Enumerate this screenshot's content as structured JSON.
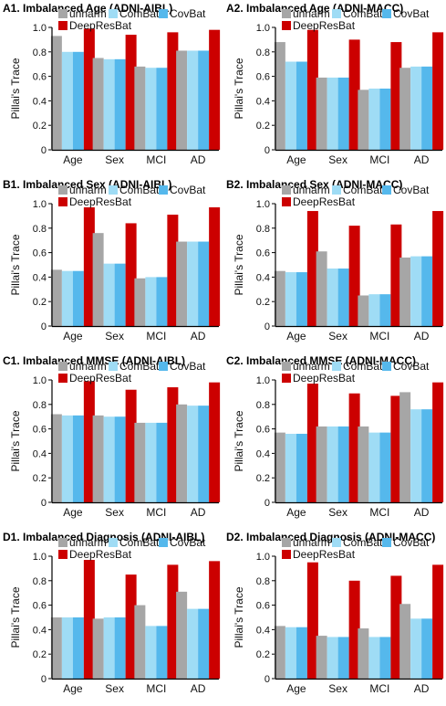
{
  "chart_data": [
    {
      "type": "bar",
      "title": "A1. Imbalanced Age (ADNI-AIBL)",
      "ylabel": "Pillai's Trace",
      "ylim": [
        0,
        1.0
      ],
      "yticks": [
        "0",
        "0.2",
        "0.4",
        "0.6",
        "0.8",
        "1.0"
      ],
      "categories": [
        "Age",
        "Sex",
        "MCI",
        "AD"
      ],
      "series": [
        {
          "name": "unharm",
          "color": "#a6a6a6",
          "values": [
            0.93,
            0.75,
            0.68,
            0.81
          ]
        },
        {
          "name": "ComBat",
          "color": "#9fdcf5",
          "values": [
            0.8,
            0.74,
            0.67,
            0.81
          ]
        },
        {
          "name": "CovBat",
          "color": "#55b8ec",
          "values": [
            0.8,
            0.74,
            0.67,
            0.81
          ]
        },
        {
          "name": "DeepResBat",
          "color": "#cc0000",
          "values": [
            0.99,
            0.94,
            0.96,
            0.98
          ]
        }
      ]
    },
    {
      "type": "bar",
      "title": "A2. Imbalanced Age (ADNI-MACC)",
      "ylabel": "Pillai's Trace",
      "ylim": [
        0,
        1.0
      ],
      "yticks": [
        "0",
        "0.2",
        "0.4",
        "0.6",
        "0.8",
        "1.0"
      ],
      "categories": [
        "Age",
        "Sex",
        "MCI",
        "AD"
      ],
      "series": [
        {
          "name": "unharm",
          "color": "#a6a6a6",
          "values": [
            0.88,
            0.59,
            0.49,
            0.67
          ]
        },
        {
          "name": "ComBat",
          "color": "#9fdcf5",
          "values": [
            0.72,
            0.59,
            0.5,
            0.68
          ]
        },
        {
          "name": "CovBat",
          "color": "#55b8ec",
          "values": [
            0.72,
            0.59,
            0.5,
            0.68
          ]
        },
        {
          "name": "DeepResBat",
          "color": "#cc0000",
          "values": [
            0.98,
            0.9,
            0.88,
            0.96
          ]
        }
      ]
    },
    {
      "type": "bar",
      "title": "B1. Imbalanced Sex (ADNI-AIBL)",
      "ylabel": "Pillai's Trace",
      "ylim": [
        0,
        1.0
      ],
      "yticks": [
        "0",
        "0.2",
        "0.4",
        "0.6",
        "0.8",
        "1.0"
      ],
      "categories": [
        "Age",
        "Sex",
        "MCI",
        "AD"
      ],
      "series": [
        {
          "name": "unharm",
          "color": "#a6a6a6",
          "values": [
            0.46,
            0.76,
            0.39,
            0.69
          ]
        },
        {
          "name": "ComBat",
          "color": "#9fdcf5",
          "values": [
            0.45,
            0.51,
            0.4,
            0.69
          ]
        },
        {
          "name": "CovBat",
          "color": "#55b8ec",
          "values": [
            0.45,
            0.51,
            0.4,
            0.69
          ]
        },
        {
          "name": "DeepResBat",
          "color": "#cc0000",
          "values": [
            0.97,
            0.84,
            0.91,
            0.97
          ]
        }
      ]
    },
    {
      "type": "bar",
      "title": "B2. Imbalanced Sex (ADNI-MACC)",
      "ylabel": "Pillai's Trace",
      "ylim": [
        0,
        1.0
      ],
      "yticks": [
        "0",
        "0.2",
        "0.4",
        "0.6",
        "0.8",
        "1.0"
      ],
      "categories": [
        "Age",
        "Sex",
        "MCI",
        "AD"
      ],
      "series": [
        {
          "name": "unharm",
          "color": "#a6a6a6",
          "values": [
            0.45,
            0.61,
            0.25,
            0.56
          ]
        },
        {
          "name": "ComBat",
          "color": "#9fdcf5",
          "values": [
            0.44,
            0.47,
            0.26,
            0.57
          ]
        },
        {
          "name": "CovBat",
          "color": "#55b8ec",
          "values": [
            0.44,
            0.47,
            0.26,
            0.57
          ]
        },
        {
          "name": "DeepResBat",
          "color": "#cc0000",
          "values": [
            0.94,
            0.82,
            0.83,
            0.94
          ]
        }
      ]
    },
    {
      "type": "bar",
      "title": "C1. Imbalanced MMSE (ADNI-AIBL)",
      "ylabel": "Pillai's Trace",
      "ylim": [
        0,
        1.0
      ],
      "yticks": [
        "0",
        "0.2",
        "0.4",
        "0.6",
        "0.8",
        "1.0"
      ],
      "categories": [
        "Age",
        "Sex",
        "MCI",
        "AD"
      ],
      "series": [
        {
          "name": "unharm",
          "color": "#a6a6a6",
          "values": [
            0.72,
            0.71,
            0.65,
            0.8
          ]
        },
        {
          "name": "ComBat",
          "color": "#9fdcf5",
          "values": [
            0.71,
            0.7,
            0.65,
            0.79
          ]
        },
        {
          "name": "CovBat",
          "color": "#55b8ec",
          "values": [
            0.71,
            0.7,
            0.65,
            0.79
          ]
        },
        {
          "name": "DeepResBat",
          "color": "#cc0000",
          "values": [
            0.99,
            0.92,
            0.94,
            0.98
          ]
        }
      ]
    },
    {
      "type": "bar",
      "title": "C2. Imbalanced MMSE (ADNI-MACC)",
      "ylabel": "Pillai's Trace",
      "ylim": [
        0,
        1.0
      ],
      "yticks": [
        "0",
        "0.2",
        "0.4",
        "0.6",
        "0.8",
        "1.0"
      ],
      "categories": [
        "Age",
        "Sex",
        "MCI",
        "AD"
      ],
      "series": [
        {
          "name": "unharm",
          "color": "#a6a6a6",
          "values": [
            0.57,
            0.62,
            0.62,
            0.9
          ]
        },
        {
          "name": "ComBat",
          "color": "#9fdcf5",
          "values": [
            0.56,
            0.62,
            0.57,
            0.76
          ]
        },
        {
          "name": "CovBat",
          "color": "#55b8ec",
          "values": [
            0.56,
            0.62,
            0.57,
            0.76
          ]
        },
        {
          "name": "DeepResBat",
          "color": "#cc0000",
          "values": [
            0.97,
            0.89,
            0.87,
            0.98
          ]
        }
      ]
    },
    {
      "type": "bar",
      "title": "D1. Imbalanced Diagnosis (ADNI-AIBL)",
      "ylabel": "Pillai's Trace",
      "ylim": [
        0,
        1.0
      ],
      "yticks": [
        "0",
        "0.2",
        "0.4",
        "0.6",
        "0.8",
        "1.0"
      ],
      "categories": [
        "Age",
        "Sex",
        "MCI",
        "AD"
      ],
      "series": [
        {
          "name": "unharm",
          "color": "#a6a6a6",
          "values": [
            0.5,
            0.49,
            0.6,
            0.71
          ]
        },
        {
          "name": "ComBat",
          "color": "#9fdcf5",
          "values": [
            0.5,
            0.5,
            0.43,
            0.57
          ]
        },
        {
          "name": "CovBat",
          "color": "#55b8ec",
          "values": [
            0.5,
            0.5,
            0.43,
            0.57
          ]
        },
        {
          "name": "DeepResBat",
          "color": "#cc0000",
          "values": [
            0.97,
            0.85,
            0.93,
            0.96
          ]
        }
      ]
    },
    {
      "type": "bar",
      "title": "D2. Imbalanced Diagnosis (ADNI-MACC)",
      "ylabel": "Pillai's Trace",
      "ylim": [
        0,
        1.0
      ],
      "yticks": [
        "0",
        "0.2",
        "0.4",
        "0.6",
        "0.8",
        "1.0"
      ],
      "categories": [
        "Age",
        "Sex",
        "MCI",
        "AD"
      ],
      "series": [
        {
          "name": "unharm",
          "color": "#a6a6a6",
          "values": [
            0.43,
            0.35,
            0.41,
            0.61
          ]
        },
        {
          "name": "ComBat",
          "color": "#9fdcf5",
          "values": [
            0.42,
            0.34,
            0.34,
            0.49
          ]
        },
        {
          "name": "CovBat",
          "color": "#55b8ec",
          "values": [
            0.42,
            0.34,
            0.34,
            0.49
          ]
        },
        {
          "name": "DeepResBat",
          "color": "#cc0000",
          "values": [
            0.95,
            0.8,
            0.84,
            0.93
          ]
        }
      ]
    }
  ]
}
